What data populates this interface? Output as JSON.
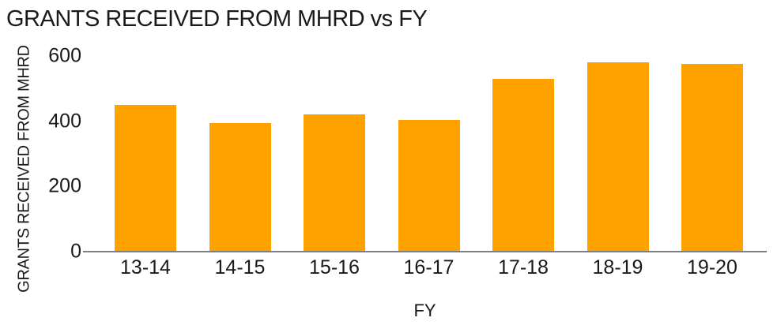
{
  "chart_data": {
    "type": "bar",
    "title": "GRANTS RECEIVED FROM MHRD vs FY",
    "xlabel": "FY",
    "ylabel": "GRANTS RECEIVED FROM MHRD",
    "categories": [
      "13-14",
      "14-15",
      "15-16",
      "16-17",
      "17-18",
      "18-19",
      "19-20"
    ],
    "values": [
      450,
      395,
      420,
      405,
      530,
      580,
      575
    ],
    "ylim": [
      0,
      600
    ],
    "yticks": [
      0,
      200,
      400,
      600
    ],
    "grid": false,
    "legend": false,
    "bar_color": "#FFA200"
  },
  "colors": {
    "background": "#FFFFFF",
    "text": "#1A1A1A",
    "axis_line": "#7F7F7F",
    "bar": "#FFA200"
  }
}
